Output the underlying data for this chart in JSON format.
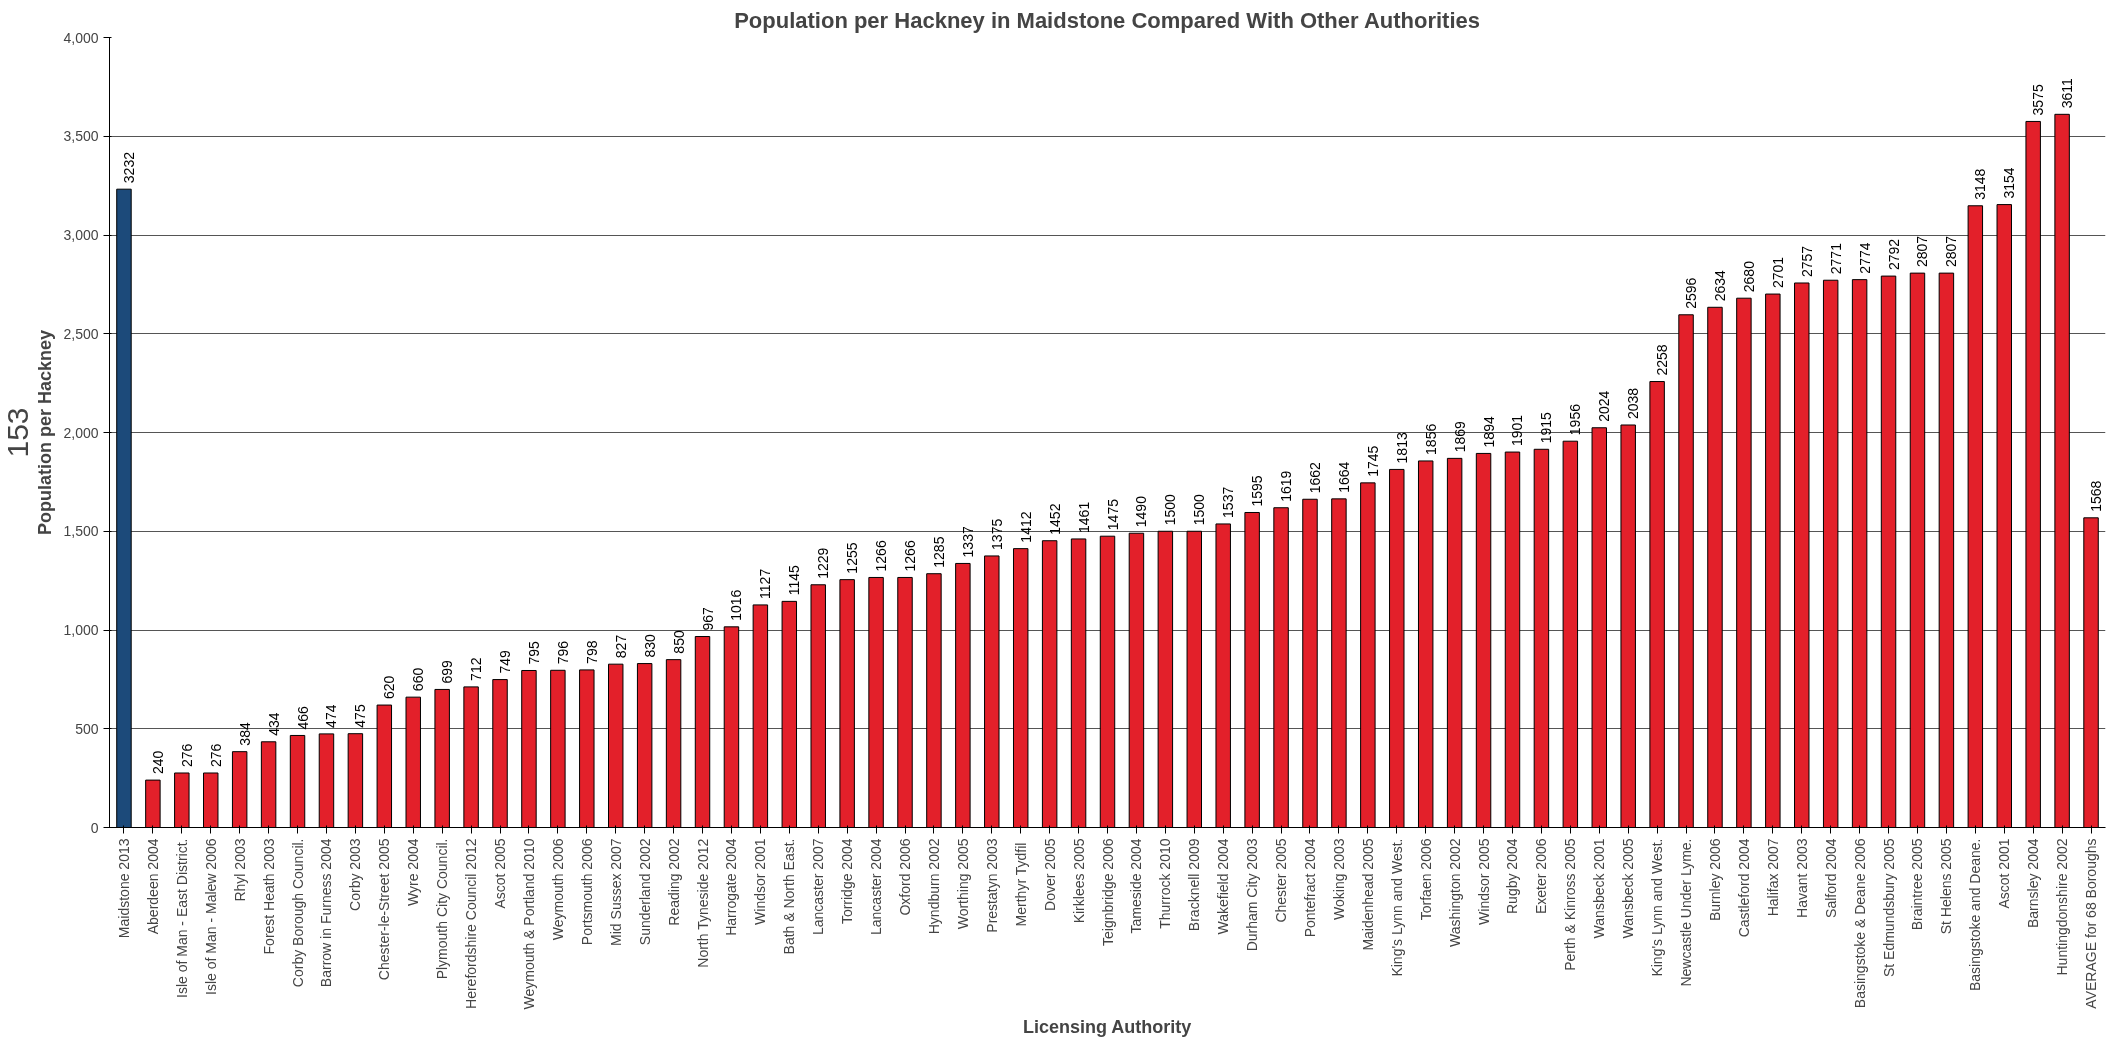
{
  "chart_data": {
    "type": "bar",
    "title": "Population per Hackney in Maidstone Compared With Other Authorities",
    "xlabel": "Licensing Authority",
    "ylabel": "Population per Hackney",
    "annotations": [
      "153"
    ],
    "categories": [
      "Maidstone 2013",
      "Aberdeen 2004",
      "Isle of Man - East District.",
      "Isle of Man - Malew 2006",
      "Rhyl 2003",
      "Forest Heath 2003",
      "Corby Borough Council.",
      "Barrow in Furness 2004",
      "Corby 2003",
      "Chester-le-Street 2005",
      "Wyre 2004",
      "Plymouth City Council.",
      "Herefordshire Council 2012",
      "Ascot 2005",
      "Weymouth & Portland 2010",
      "Weymouth 2006",
      "Portsmouth 2006",
      "Mid Sussex 2007",
      "Sunderland 2002",
      "Reading 2002",
      "North Tyneside 2012",
      "Harrogate 2004",
      "Windsor 2001",
      "Bath & North East.",
      "Lancaster 2007",
      "Torridge 2004",
      "Lancaster 2004",
      "Oxford 2006",
      "Hyndburn 2002",
      "Worthing 2005",
      "Prestatyn 2003",
      "Merthyr  Tydfil",
      "Dover 2005",
      "Kirklees 2005",
      "Teignbridge 2006",
      "Tameside 2004",
      "Thurrock 2010",
      "Bracknell 2009",
      "Wakefield 2004",
      "Durham City 2003",
      "Chester 2005",
      "Pontefract 2004",
      "Woking 2003",
      "Maidenhead 2005",
      "King's Lynn and West.",
      "Torfaen 2006",
      "Washington 2002",
      "Windsor 2005",
      "Rugby 2004",
      "Exeter 2006",
      "Perth & Kinross 2005",
      "Wansbeck 2001",
      "Wansbeck 2005",
      "King's Lynn and West.",
      "Newcastle Under Lyme.",
      "Burnley 2006",
      "Castleford 2004",
      "Halifax 2007",
      "Havant 2003",
      "Salford 2004",
      "Basingstoke & Deane 2006",
      "St Edmundsbury 2005",
      "Braintree 2005",
      "St Helens 2005",
      "Basingstoke and Deane.",
      "Ascot 2001",
      "Barnsley 2004",
      "Huntingdonshire 2002",
      "AVERAGE for 68 Boroughs"
    ],
    "values": [
      3232,
      240,
      276,
      276,
      384,
      434,
      466,
      474,
      475,
      620,
      660,
      699,
      712,
      749,
      795,
      796,
      798,
      827,
      830,
      850,
      967,
      1016,
      1127,
      1145,
      1229,
      1255,
      1266,
      1266,
      1285,
      1337,
      1375,
      1412,
      1452,
      1461,
      1475,
      1490,
      1500,
      1500,
      1537,
      1595,
      1619,
      1662,
      1664,
      1745,
      1813,
      1856,
      1869,
      1894,
      1901,
      1915,
      1956,
      2024,
      2038,
      2258,
      2596,
      2634,
      2680,
      2701,
      2757,
      2771,
      2774,
      2792,
      2807,
      2807,
      3148,
      3154,
      3575,
      3611,
      1568
    ],
    "colors": [
      "#1c4a7a",
      "#e3202a",
      "#e3202a",
      "#e3202a",
      "#e3202a",
      "#e3202a",
      "#e3202a",
      "#e3202a",
      "#e3202a",
      "#e3202a",
      "#e3202a",
      "#e3202a",
      "#e3202a",
      "#e3202a",
      "#e3202a",
      "#e3202a",
      "#e3202a",
      "#e3202a",
      "#e3202a",
      "#e3202a",
      "#e3202a",
      "#e3202a",
      "#e3202a",
      "#e3202a",
      "#e3202a",
      "#e3202a",
      "#e3202a",
      "#e3202a",
      "#e3202a",
      "#e3202a",
      "#e3202a",
      "#e3202a",
      "#e3202a",
      "#e3202a",
      "#e3202a",
      "#e3202a",
      "#e3202a",
      "#e3202a",
      "#e3202a",
      "#e3202a",
      "#e3202a",
      "#e3202a",
      "#e3202a",
      "#e3202a",
      "#e3202a",
      "#e3202a",
      "#e3202a",
      "#e3202a",
      "#e3202a",
      "#e3202a",
      "#e3202a",
      "#e3202a",
      "#e3202a",
      "#e3202a",
      "#e3202a",
      "#e3202a",
      "#e3202a",
      "#e3202a",
      "#e3202a",
      "#e3202a",
      "#e3202a",
      "#e3202a",
      "#e3202a",
      "#e3202a",
      "#e3202a",
      "#e3202a",
      "#e3202a",
      "#e3202a",
      "#e3202a"
    ],
    "ylim": [
      0,
      4000
    ],
    "yticks": [
      0,
      {
        "value": 500,
        "label": "500"
      },
      {
        "value": 1000,
        "label": "1,000"
      },
      {
        "value": 1500,
        "label": "1,500"
      },
      {
        "value": 2000,
        "label": "2,000"
      },
      {
        "value": 2500,
        "label": "2,500"
      },
      {
        "value": 3000,
        "label": "3,000"
      },
      {
        "value": 3500,
        "label": "3,500"
      },
      {
        "value": 4000,
        "label": "4,000"
      }
    ],
    "grid": "y",
    "data_labels": true
  }
}
